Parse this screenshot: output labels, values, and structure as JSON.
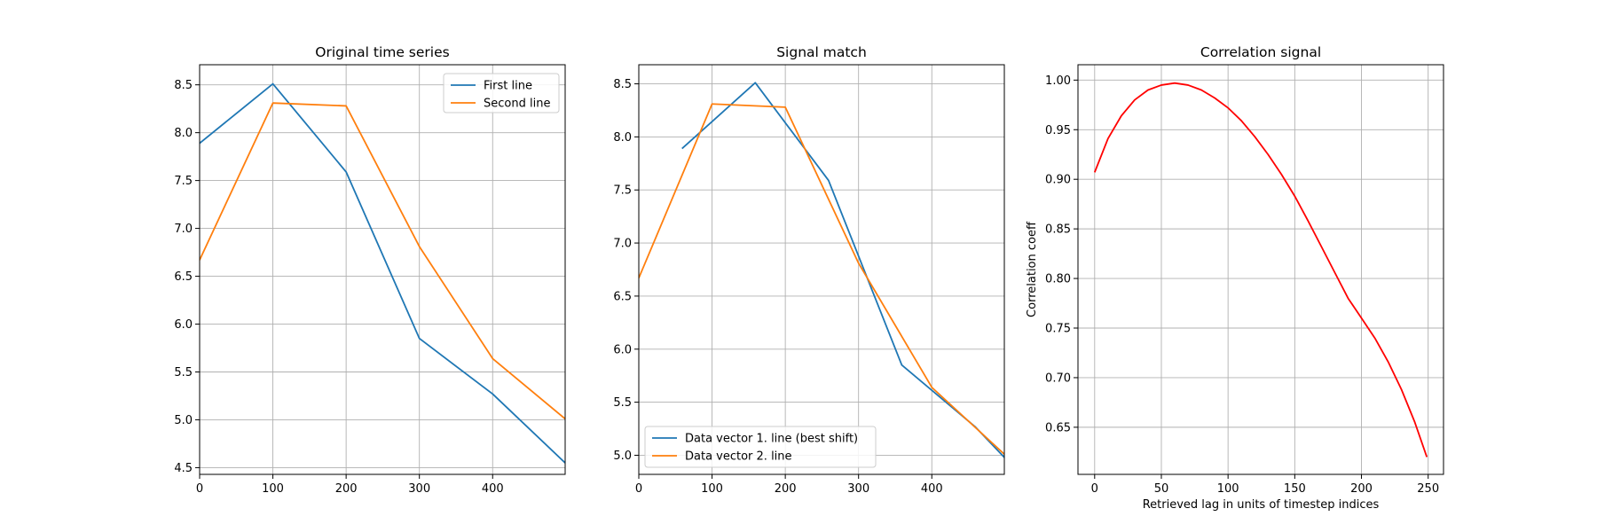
{
  "chart_data": [
    {
      "type": "line",
      "title": "Original time series",
      "xlabel": "",
      "ylabel": "",
      "xlim": [
        0,
        499
      ],
      "ylim": [
        4.43,
        8.71
      ],
      "xticks": [
        0,
        100,
        200,
        300,
        400
      ],
      "yticks": [
        4.5,
        5.0,
        5.5,
        6.0,
        6.5,
        7.0,
        7.5,
        8.0,
        8.5
      ],
      "tick_labels_x": [
        "0",
        "100",
        "200",
        "300",
        "400"
      ],
      "tick_labels_y": [
        "4.5",
        "5.0",
        "5.5",
        "6.0",
        "6.5",
        "7.0",
        "7.5",
        "8.0",
        "8.5"
      ],
      "grid": true,
      "legend_placement": "top-right",
      "series": [
        {
          "name": "First line",
          "color": "#1f77b4",
          "x": [
            0,
            100,
            200,
            300,
            400,
            499
          ],
          "y": [
            7.89,
            8.51,
            7.59,
            5.85,
            5.27,
            4.55
          ]
        },
        {
          "name": "Second line",
          "color": "#ff7f0e",
          "x": [
            0,
            100,
            200,
            300,
            400,
            499
          ],
          "y": [
            6.67,
            8.31,
            8.28,
            6.81,
            5.64,
            5.01
          ]
        }
      ]
    },
    {
      "type": "line",
      "title": "Signal match",
      "xlabel": "",
      "ylabel": "",
      "xlim": [
        0,
        499
      ],
      "ylim": [
        4.82,
        8.68
      ],
      "xticks": [
        0,
        100,
        200,
        300,
        400
      ],
      "yticks": [
        5.0,
        5.5,
        6.0,
        6.5,
        7.0,
        7.5,
        8.0,
        8.5
      ],
      "tick_labels_x": [
        "0",
        "100",
        "200",
        "300",
        "400"
      ],
      "tick_labels_y": [
        "5.0",
        "5.5",
        "6.0",
        "6.5",
        "7.0",
        "7.5",
        "8.0",
        "8.5"
      ],
      "grid": true,
      "legend_placement": "bottom-left",
      "series": [
        {
          "name": "Data vector 1. line (best shift)",
          "color": "#1f77b4",
          "x": [
            59,
            159,
            259,
            359,
            459,
            499
          ],
          "y": [
            7.89,
            8.51,
            7.59,
            5.85,
            5.27,
            4.98
          ]
        },
        {
          "name": "Data vector 2. line",
          "color": "#ff7f0e",
          "x": [
            0,
            100,
            200,
            300,
            400,
            499
          ],
          "y": [
            6.67,
            8.31,
            8.28,
            6.81,
            5.64,
            5.01
          ]
        }
      ]
    },
    {
      "type": "line",
      "title": "Correlation signal",
      "xlabel": "Retrieved lag in units of timestep indices",
      "ylabel": "Correlation coeff",
      "xlim": [
        -12.5,
        261.5
      ],
      "ylim": [
        0.6025,
        1.0155
      ],
      "xticks": [
        0,
        50,
        100,
        150,
        200,
        250
      ],
      "yticks": [
        0.65,
        0.7,
        0.75,
        0.8,
        0.85,
        0.9,
        0.95,
        1.0
      ],
      "tick_labels_x": [
        "0",
        "50",
        "100",
        "150",
        "200",
        "250"
      ],
      "tick_labels_y": [
        "0.65",
        "0.70",
        "0.75",
        "0.80",
        "0.85",
        "0.90",
        "0.95",
        "1.00"
      ],
      "grid": true,
      "series": [
        {
          "color": "#ff0000",
          "x": [
            0,
            10,
            20,
            30,
            40,
            50,
            60,
            70,
            80,
            90,
            100,
            110,
            120,
            130,
            140,
            150,
            160,
            170,
            180,
            190,
            200,
            210,
            220,
            230,
            240,
            249
          ],
          "y": [
            0.907,
            0.941,
            0.964,
            0.98,
            0.99,
            0.995,
            0.997,
            0.995,
            0.99,
            0.982,
            0.972,
            0.959,
            0.943,
            0.925,
            0.905,
            0.883,
            0.858,
            0.832,
            0.806,
            0.78,
            0.76,
            0.74,
            0.716,
            0.688,
            0.655,
            0.62
          ]
        }
      ]
    }
  ]
}
